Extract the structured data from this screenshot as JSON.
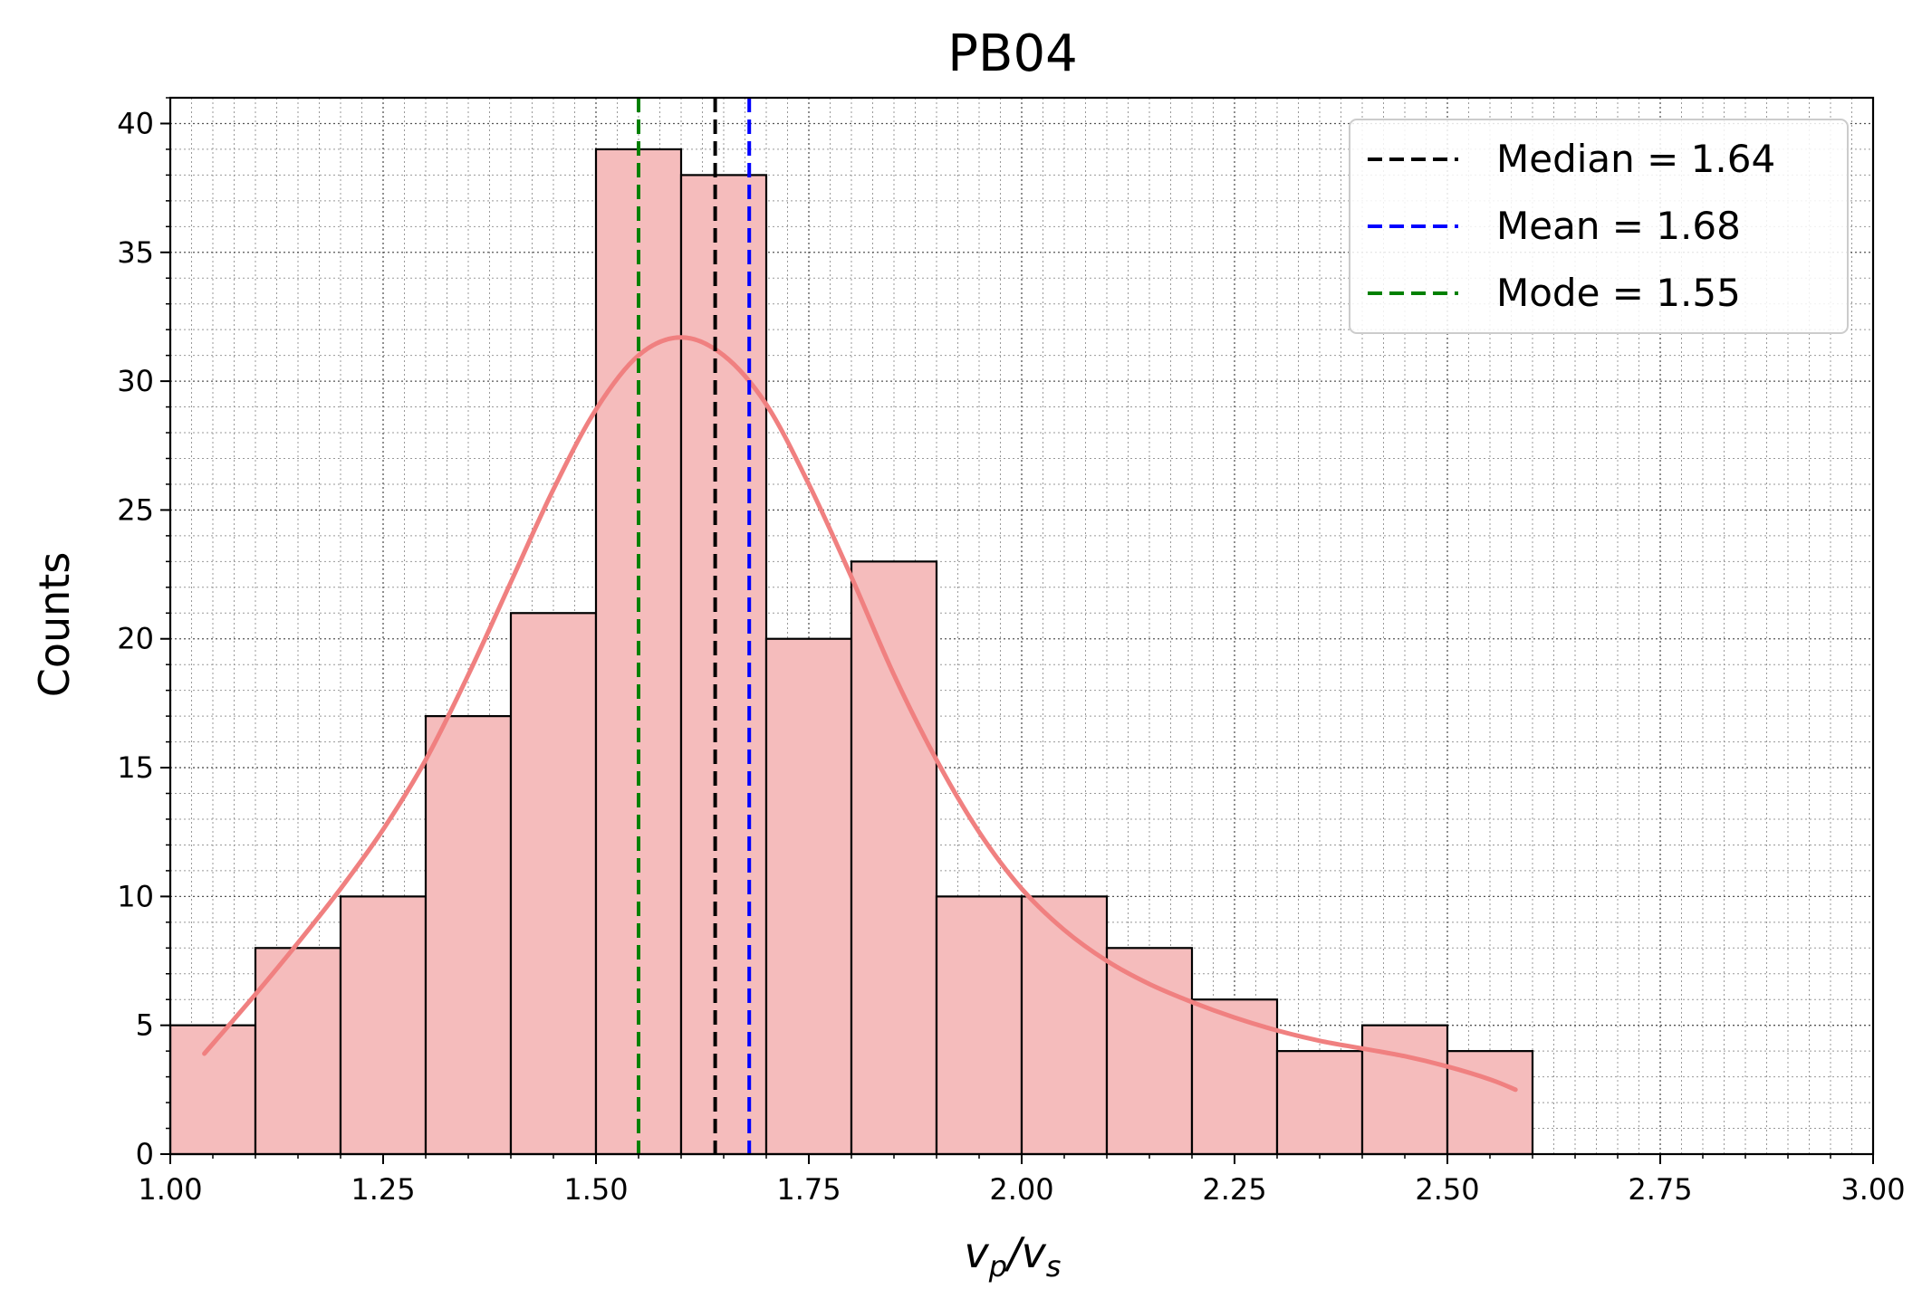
{
  "chart_data": {
    "type": "bar",
    "title": "PB04",
    "xlabel_main": "v",
    "xlabel_sub1": "p",
    "xlabel_slash": "/",
    "xlabel_main2": "v",
    "xlabel_sub2": "s",
    "ylabel": "Counts",
    "xlim": [
      1.0,
      3.0
    ],
    "ylim": [
      0,
      41
    ],
    "x_ticks": [
      1.0,
      1.25,
      1.5,
      1.75,
      2.0,
      2.25,
      2.5,
      2.75,
      3.0
    ],
    "x_tick_labels": [
      "1.00",
      "1.25",
      "1.50",
      "1.75",
      "2.00",
      "2.25",
      "2.50",
      "2.75",
      "3.00"
    ],
    "y_ticks": [
      0,
      5,
      10,
      15,
      20,
      25,
      30,
      35,
      40
    ],
    "y_tick_labels": [
      "0",
      "5",
      "10",
      "15",
      "20",
      "25",
      "30",
      "35",
      "40"
    ],
    "bins": [
      {
        "x0": 1.0,
        "x1": 1.1,
        "count": 5
      },
      {
        "x0": 1.1,
        "x1": 1.2,
        "count": 8
      },
      {
        "x0": 1.2,
        "x1": 1.3,
        "count": 10
      },
      {
        "x0": 1.3,
        "x1": 1.4,
        "count": 17
      },
      {
        "x0": 1.4,
        "x1": 1.5,
        "count": 21
      },
      {
        "x0": 1.5,
        "x1": 1.6,
        "count": 39
      },
      {
        "x0": 1.6,
        "x1": 1.7,
        "count": 38
      },
      {
        "x0": 1.7,
        "x1": 1.8,
        "count": 20
      },
      {
        "x0": 1.8,
        "x1": 1.9,
        "count": 23
      },
      {
        "x0": 1.9,
        "x1": 2.0,
        "count": 10
      },
      {
        "x0": 2.0,
        "x1": 2.1,
        "count": 10
      },
      {
        "x0": 2.1,
        "x1": 2.2,
        "count": 8
      },
      {
        "x0": 2.2,
        "x1": 2.3,
        "count": 6
      },
      {
        "x0": 2.3,
        "x1": 2.4,
        "count": 4
      },
      {
        "x0": 2.4,
        "x1": 2.5,
        "count": 5
      },
      {
        "x0": 2.5,
        "x1": 2.6,
        "count": 4
      }
    ],
    "kde": {
      "x": [
        1.04,
        1.1,
        1.15,
        1.2,
        1.25,
        1.3,
        1.35,
        1.4,
        1.45,
        1.5,
        1.55,
        1.6,
        1.65,
        1.7,
        1.75,
        1.8,
        1.85,
        1.9,
        1.95,
        2.0,
        2.05,
        2.1,
        2.15,
        2.2,
        2.25,
        2.3,
        2.35,
        2.4,
        2.45,
        2.5,
        2.55,
        2.58
      ],
      "y": [
        3.9,
        6.2,
        8.2,
        10.3,
        12.6,
        15.3,
        18.6,
        22.2,
        25.8,
        28.9,
        31.0,
        31.7,
        31.0,
        29.1,
        26.0,
        22.4,
        18.6,
        15.3,
        12.5,
        10.3,
        8.7,
        7.5,
        6.6,
        5.9,
        5.3,
        4.8,
        4.4,
        4.1,
        3.8,
        3.4,
        2.9,
        2.5
      ],
      "color": "#f08080"
    },
    "bar_fill": "#f5bcbc",
    "bar_edge": "#000000",
    "vlines": [
      {
        "x": 1.64,
        "color": "#000000",
        "label": "Median = 1.64"
      },
      {
        "x": 1.68,
        "color": "#0000ff",
        "label": "Mean = 1.68"
      },
      {
        "x": 1.55,
        "color": "#008000",
        "label": "Mode = 1.55"
      }
    ],
    "grid": true,
    "legend_position": "top-right"
  }
}
